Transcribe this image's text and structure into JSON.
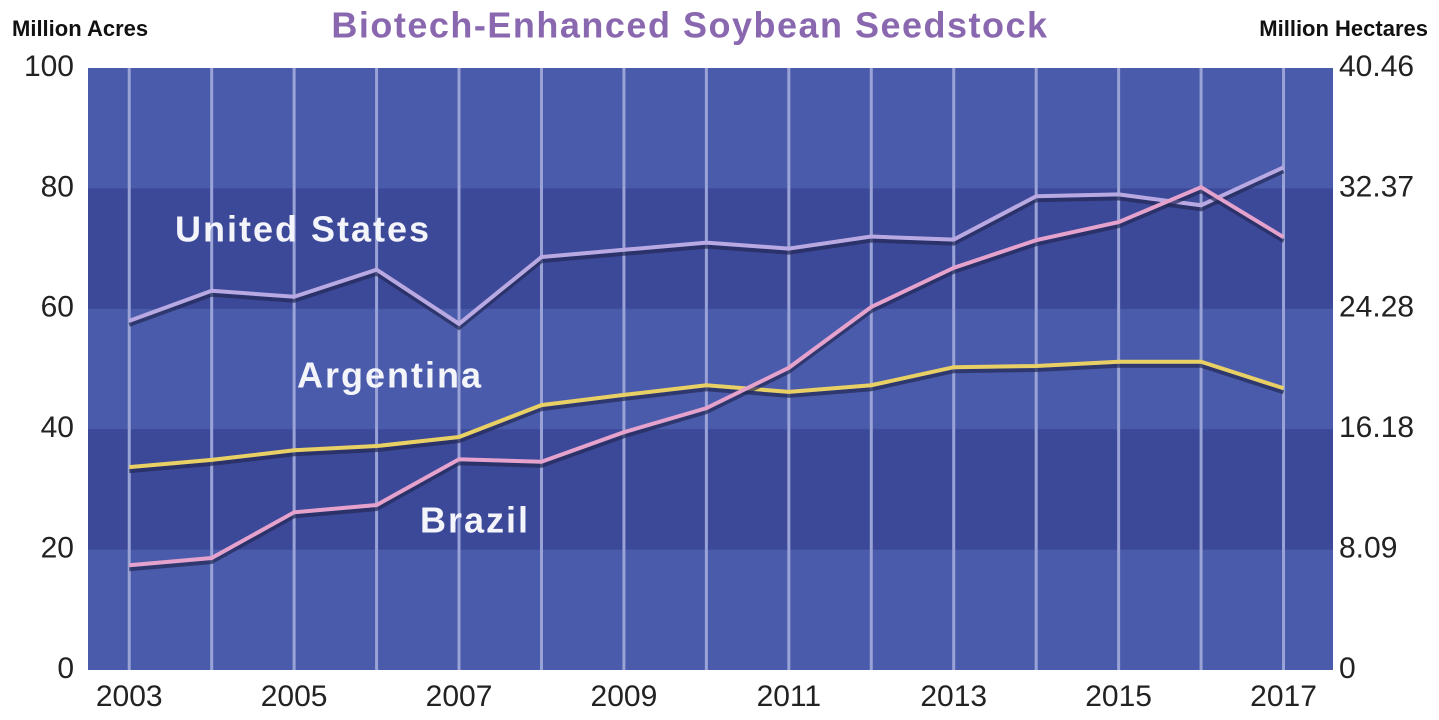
{
  "chart_data": {
    "type": "line",
    "title": "Biotech-Enhanced Soybean Seedstock",
    "y_label": "Million Acres",
    "y2_label": "Million Hectares",
    "x": [
      2003,
      2004,
      2005,
      2006,
      2007,
      2008,
      2009,
      2010,
      2011,
      2012,
      2013,
      2014,
      2015,
      2016,
      2017
    ],
    "xlim": [
      2002.5,
      2017.6
    ],
    "xticks": [
      2003,
      2005,
      2007,
      2009,
      2011,
      2013,
      2015,
      2017
    ],
    "ylim": [
      0,
      100
    ],
    "yticks": [
      0,
      20,
      40,
      60,
      80,
      100
    ],
    "y2lim": [
      0,
      40.46
    ],
    "y2ticks": [
      0,
      8.09,
      16.18,
      24.28,
      32.37,
      40.46
    ],
    "grid": true,
    "series": [
      {
        "name": "United States",
        "color": "#b9a9e2",
        "values": [
          58,
          63,
          62,
          66.5,
          57.5,
          68.6,
          69.8,
          71,
          70,
          72,
          71.5,
          78.7,
          79,
          77.2,
          83.5
        ]
      },
      {
        "name": "Argentina",
        "color": "#e8d064",
        "values": [
          33.7,
          34.9,
          36.5,
          37.2,
          38.7,
          44,
          45.7,
          47.3,
          46.2,
          47.3,
          50.3,
          50.5,
          51.2,
          51.2,
          46.8
        ]
      },
      {
        "name": "Brazil",
        "color": "#e4a2cc",
        "values": [
          17.4,
          18.6,
          26.2,
          27.4,
          35,
          34.6,
          39.5,
          43.5,
          50.2,
          60.3,
          66.8,
          71.4,
          74.4,
          80.2,
          71.9
        ]
      }
    ]
  }
}
